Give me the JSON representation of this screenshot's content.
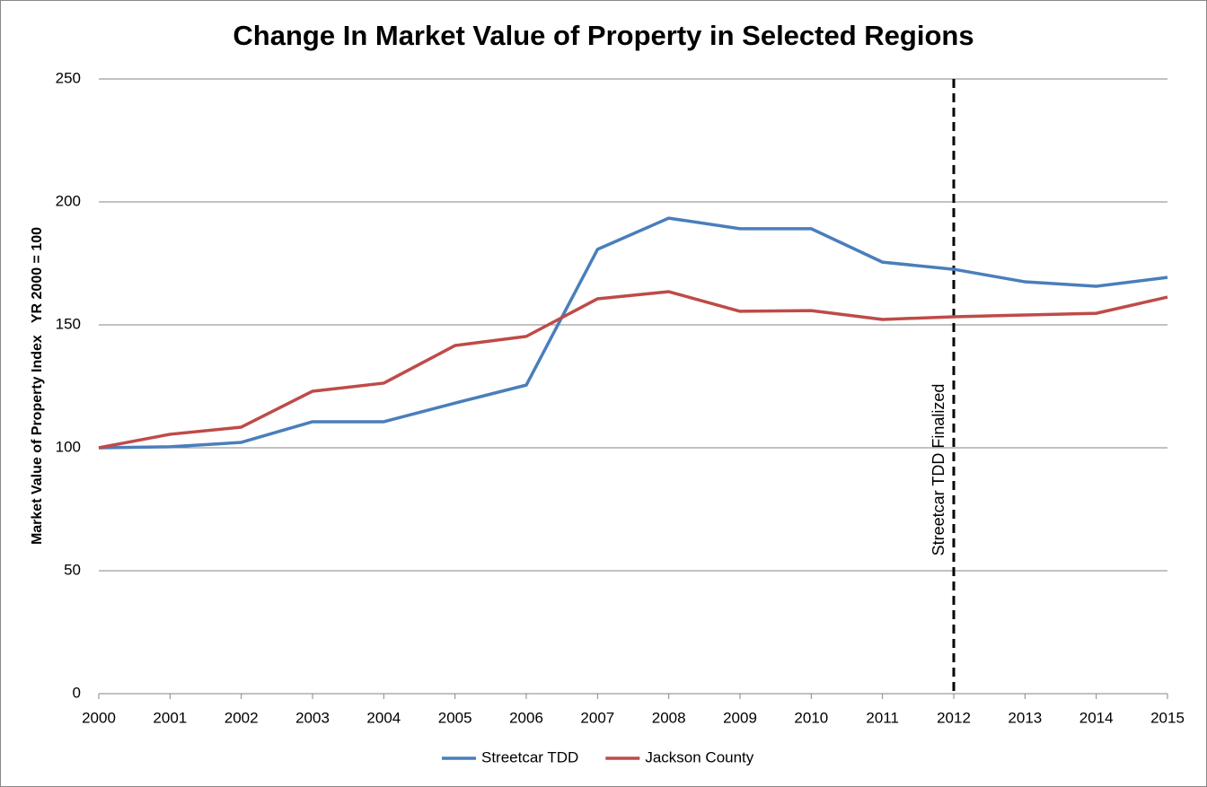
{
  "chart_data": {
    "type": "line",
    "title": "Change In Market Value of Property in Selected Regions",
    "y_axis_label": "Market Value of Property Index   YR 2000 = 100",
    "x": [
      2000,
      2001,
      2002,
      2003,
      2004,
      2005,
      2006,
      2007,
      2008,
      2009,
      2010,
      2011,
      2012,
      2013,
      2014,
      2015
    ],
    "xlim": [
      2000,
      2015
    ],
    "xticks": [
      2000,
      2001,
      2002,
      2003,
      2004,
      2005,
      2006,
      2007,
      2008,
      2009,
      2010,
      2011,
      2012,
      2013,
      2014,
      2015
    ],
    "ylim": [
      0,
      250
    ],
    "yticks": [
      0,
      50,
      100,
      150,
      200,
      250
    ],
    "grid": true,
    "legend": "bottom",
    "series": [
      {
        "name": "Streetcar TDD",
        "color": "#4a7ebb",
        "values": [
          100,
          100.4,
          102.2,
          110.6,
          110.6,
          118.2,
          125.5,
          180.7,
          193.4,
          189.1,
          189.1,
          175.5,
          172.6,
          167.5,
          165.7,
          169.3
        ]
      },
      {
        "name": "Jackson County",
        "color": "#be4b48",
        "values": [
          100,
          105.5,
          108.4,
          123.0,
          126.3,
          141.6,
          145.3,
          160.6,
          163.5,
          155.5,
          155.8,
          152.2,
          153.3,
          154.0,
          154.7,
          161.3
        ]
      }
    ],
    "annotation": {
      "x": 2012,
      "text": "Streetcar TDD Finalized"
    }
  }
}
